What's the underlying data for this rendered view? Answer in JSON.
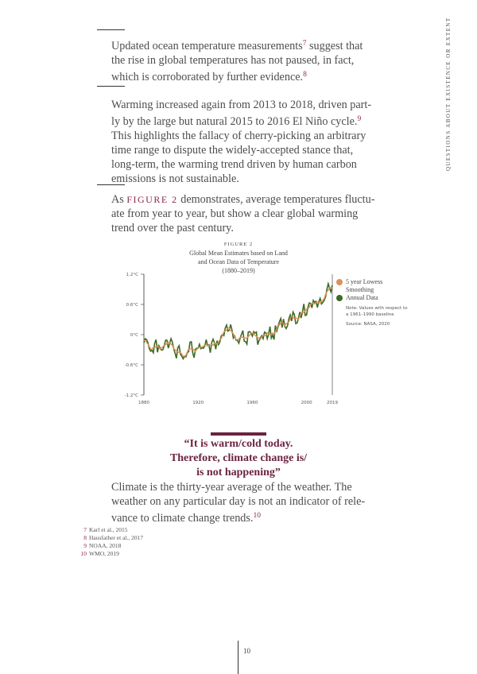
{
  "side_header": "QUESTIONS ABOUT EXISTENCE OR EXTENT",
  "para1": {
    "lines": [
      "Updated ocean temperature measurements",
      "the rise in global temperatures has not paused, in fact,",
      "which is corroborated by further evidence."
    ],
    "sup1": "7",
    "after1": " suggest that",
    "sup2": "8"
  },
  "para2": {
    "lines": [
      "Warming increased again from 2013 to 2018, driven part-",
      "ly by the large but natural 2015 to 2016 El Niño cycle.",
      "This highlights the fallacy of cherry-picking an arbitrary",
      "time range to dispute the widely-accepted stance that,",
      "long-term, the warming trend driven by human carbon",
      "emissions is not sustainable."
    ],
    "sup": "9"
  },
  "para3": {
    "as": "As ",
    "figref": "FIGURE 2",
    "rest": " demonstrates, average temperatures fluctu-",
    "lines": [
      "ate from year to year, but show a clear global warming",
      "trend over the past century."
    ]
  },
  "figure": {
    "label": "FIGURE 2",
    "title_lines": [
      "Global Mean Estimates based on Land",
      "and Ocean Data of Temperature",
      "(1880–2019)"
    ]
  },
  "chart_data": {
    "type": "line",
    "title": "Global Mean Estimates based on Land and Ocean Data of Temperature (1880–2019)",
    "x_start": 1880,
    "x_end": 2019,
    "x_ticks": [
      "1880",
      "1920",
      "1960",
      "2000",
      "2019"
    ],
    "x_tick_values": [
      1880,
      1920,
      1960,
      2000,
      2019
    ],
    "y_ticks": [
      "1.2°C",
      "0.6°C",
      "0°C",
      "-0.6°C",
      "-1.2°C"
    ],
    "y_tick_values": [
      1.2,
      0.6,
      0,
      -0.6,
      -1.2
    ],
    "ylim": [
      -1.2,
      1.2
    ],
    "grid": false,
    "legend_position": "right",
    "series": [
      {
        "name": "5 year Lowess Smoothing",
        "color": "#e0905a",
        "smoothing_window_years": 5
      },
      {
        "name": "Annual Data",
        "color": "#3d6b24",
        "values": [
          -0.16,
          -0.08,
          -0.1,
          -0.16,
          -0.28,
          -0.33,
          -0.31,
          -0.36,
          -0.17,
          -0.1,
          -0.35,
          -0.22,
          -0.27,
          -0.31,
          -0.3,
          -0.22,
          -0.11,
          -0.11,
          -0.27,
          -0.17,
          -0.08,
          -0.15,
          -0.28,
          -0.37,
          -0.47,
          -0.26,
          -0.22,
          -0.39,
          -0.43,
          -0.48,
          -0.43,
          -0.44,
          -0.36,
          -0.34,
          -0.15,
          -0.14,
          -0.36,
          -0.46,
          -0.29,
          -0.27,
          -0.27,
          -0.19,
          -0.28,
          -0.26,
          -0.27,
          -0.22,
          -0.1,
          -0.22,
          -0.2,
          -0.36,
          -0.16,
          -0.09,
          -0.16,
          -0.29,
          -0.12,
          -0.2,
          -0.15,
          -0.03,
          0.0,
          -0.02,
          0.13,
          0.19,
          0.07,
          0.09,
          0.2,
          0.09,
          -0.07,
          -0.03,
          -0.11,
          -0.11,
          -0.17,
          -0.07,
          0.01,
          0.08,
          -0.13,
          -0.14,
          -0.19,
          0.05,
          0.06,
          0.03,
          -0.03,
          0.06,
          0.03,
          0.05,
          -0.2,
          -0.11,
          -0.06,
          -0.02,
          -0.08,
          0.05,
          0.03,
          -0.08,
          0.01,
          0.16,
          -0.07,
          -0.01,
          -0.1,
          0.18,
          0.07,
          0.16,
          0.26,
          0.32,
          0.14,
          0.31,
          0.16,
          0.12,
          0.18,
          0.32,
          0.39,
          0.27,
          0.45,
          0.4,
          0.22,
          0.23,
          0.32,
          0.45,
          0.33,
          0.46,
          0.61,
          0.38,
          0.39,
          0.54,
          0.63,
          0.62,
          0.53,
          0.68,
          0.64,
          0.66,
          0.54,
          0.65,
          0.72,
          0.61,
          0.64,
          0.68,
          0.75,
          0.9,
          1.01,
          0.92,
          0.85,
          0.98
        ]
      }
    ],
    "note": "Note: Values with respect to a 1961–1990 baseline",
    "source": "Source: NASA, 2020"
  },
  "quote": {
    "lines": [
      "“It is warm/cold today.",
      "Therefore, climate change is/",
      "is not happening”"
    ]
  },
  "para4": {
    "lines": [
      "Climate is the thirty-year average of the weather. The",
      "weather on any particular day is not an indicator of rele-",
      "vance to climate change trends."
    ],
    "sup": "10"
  },
  "footnotes": [
    {
      "num": "7",
      "text": "Karl et al., 2015"
    },
    {
      "num": "8",
      "text": "Hausfather et al., 2017"
    },
    {
      "num": "9",
      "text": "NOAA, 2018"
    },
    {
      "num": "10",
      "text": "WMO, 2019"
    }
  ],
  "page_number": "10"
}
